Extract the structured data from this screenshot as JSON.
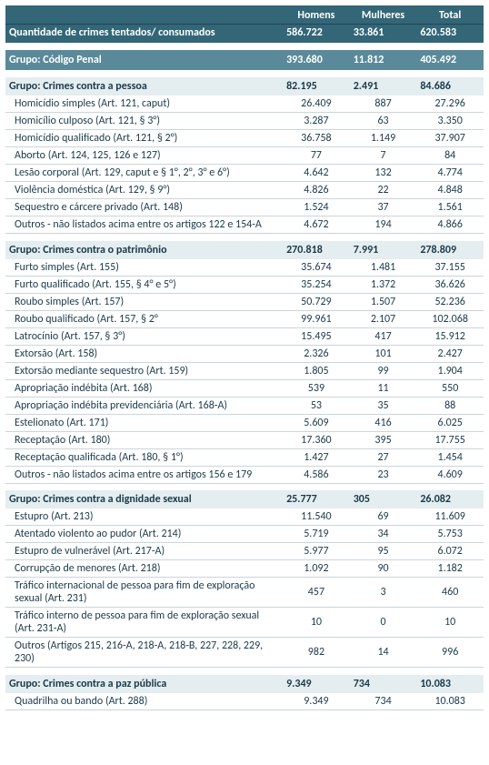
{
  "columns": {
    "homens": "Homens",
    "mulheres": "Mulheres",
    "total": "Total"
  },
  "totals_label": "Quantidade de crimes tentados/ consumados",
  "totals": {
    "h": "586.722",
    "m": "33.861",
    "t": "620.583"
  },
  "grupo_penal": {
    "label": "Grupo: Código Penal",
    "h": "393.680",
    "m": "11.812",
    "t": "405.492"
  },
  "groups": [
    {
      "label": "Grupo: Crimes contra a pessoa",
      "h": "82.195",
      "m": "2.491",
      "t": "84.686",
      "rows": [
        {
          "label": "Homicídio simples (Art. 121, caput)",
          "h": "26.409",
          "m": "887",
          "t": "27.296"
        },
        {
          "label": "Homicílio culposo (Art. 121, § 3°)",
          "h": "3.287",
          "m": "63",
          "t": "3.350"
        },
        {
          "label": "Homicídio qualificado (Art. 121, § 2°)",
          "h": "36.758",
          "m": "1.149",
          "t": "37.907"
        },
        {
          "label": "Aborto (Art. 124, 125, 126 e 127)",
          "h": "77",
          "m": "7",
          "t": "84"
        },
        {
          "label": "Lesão corporal (Art. 129, caput e § 1°, 2°, 3° e 6°)",
          "h": "4.642",
          "m": "132",
          "t": "4.774"
        },
        {
          "label": "Violência doméstica (Art. 129, § 9°)",
          "h": "4.826",
          "m": "22",
          "t": "4.848"
        },
        {
          "label": "Sequestro e cárcere privado (Art. 148)",
          "h": "1.524",
          "m": "37",
          "t": "1.561"
        },
        {
          "label": "Outros - não listados acima entre os artigos 122 e 154-A",
          "h": "4.672",
          "m": "194",
          "t": "4.866"
        }
      ]
    },
    {
      "label": "Grupo: Crimes contra o patrimônio",
      "h": "270.818",
      "m": "7.991",
      "t": "278.809",
      "rows": [
        {
          "label": "Furto simples (Art. 155)",
          "h": "35.674",
          "m": "1.481",
          "t": "37.155"
        },
        {
          "label": "Furto qualificado (Art. 155, § 4° e 5°)",
          "h": "35.254",
          "m": "1.372",
          "t": "36.626"
        },
        {
          "label": "Roubo simples (Art. 157)",
          "h": "50.729",
          "m": "1.507",
          "t": "52.236"
        },
        {
          "label": "Roubo qualificado (Art. 157, § 2°",
          "h": "99.961",
          "m": "2.107",
          "t": "102.068"
        },
        {
          "label": "Latrocínio (Art. 157, § 3°)",
          "h": "15.495",
          "m": "417",
          "t": "15.912"
        },
        {
          "label": "Extorsão (Art. 158)",
          "h": "2.326",
          "m": "101",
          "t": "2.427"
        },
        {
          "label": "Extorsão mediante sequestro (Art. 159)",
          "h": "1.805",
          "m": "99",
          "t": "1.904"
        },
        {
          "label": "Apropriação indébita (Art. 168)",
          "h": "539",
          "m": "11",
          "t": "550"
        },
        {
          "label": "Apropriação indébita previdenciária (Art. 168-A)",
          "h": "53",
          "m": "35",
          "t": "88"
        },
        {
          "label": "Estelionato (Art. 171)",
          "h": "5.609",
          "m": "416",
          "t": "6.025"
        },
        {
          "label": "Receptação (Art. 180)",
          "h": "17.360",
          "m": "395",
          "t": "17.755"
        },
        {
          "label": "Receptação qualificada (Art. 180, § 1°)",
          "h": "1.427",
          "m": "27",
          "t": "1.454"
        },
        {
          "label": "Outros - não listados acima entre os artigos 156 e 179",
          "h": "4.586",
          "m": "23",
          "t": "4.609"
        }
      ]
    },
    {
      "label": "Grupo: Crimes contra a dignidade sexual",
      "h": "25.777",
      "m": "305",
      "t": "26.082",
      "rows": [
        {
          "label": "Estupro (Art. 213)",
          "h": "11.540",
          "m": "69",
          "t": "11.609"
        },
        {
          "label": "Atentado violento ao pudor (Art. 214)",
          "h": "5.719",
          "m": "34",
          "t": "5.753"
        },
        {
          "label": "Estupro de vulnerável (Art. 217-A)",
          "h": "5.977",
          "m": "95",
          "t": "6.072"
        },
        {
          "label": "Corrupção de menores (Art. 218)",
          "h": "1.092",
          "m": "90",
          "t": "1.182"
        },
        {
          "label": "Tráfico internacional de pessoa para fim de exploração sexual (Art. 231)",
          "h": "457",
          "m": "3",
          "t": "460"
        },
        {
          "label": "Tráfico interno de pessoa para fim de exploração sexual (Art. 231-A)",
          "h": "10",
          "m": "0",
          "t": "10"
        },
        {
          "label": "Outros (Artigos 215, 216-A, 218-A, 218-B, 227, 228, 229, 230)",
          "h": "982",
          "m": "14",
          "t": "996"
        }
      ]
    },
    {
      "label": "Grupo: Crimes contra a paz pública",
      "h": "9.349",
      "m": "734",
      "t": "10.083",
      "rows": [
        {
          "label": "Quadrilha ou bando (Art. 288)",
          "h": "9.349",
          "m": "734",
          "t": "10.083"
        }
      ]
    }
  ]
}
